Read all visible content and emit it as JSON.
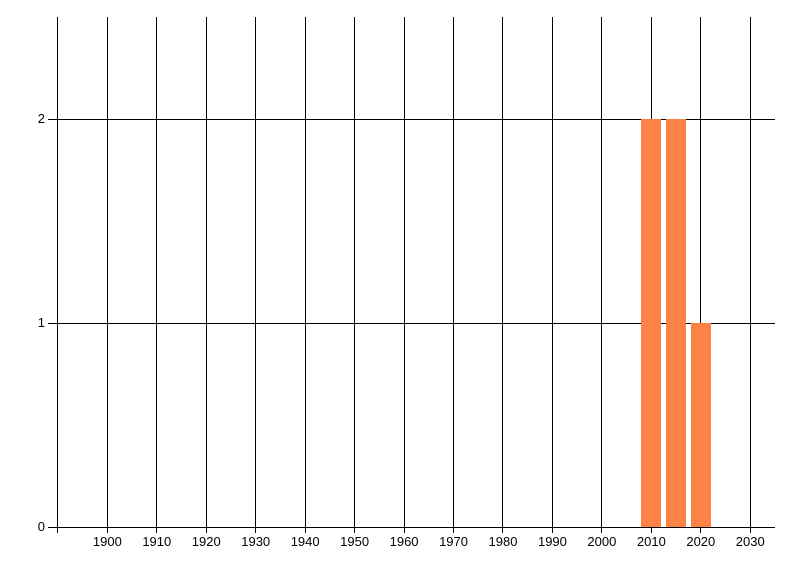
{
  "chart_data": {
    "type": "bar",
    "title": "",
    "xlabel": "",
    "ylabel": "",
    "x": [
      2010,
      2015,
      2020
    ],
    "values": [
      2,
      2,
      1
    ],
    "bar_width_years": 4,
    "xlim": [
      1888,
      2035
    ],
    "ylim": [
      0,
      2.5
    ],
    "x_gridline_years": [
      1890,
      1900,
      1910,
      1920,
      1930,
      1940,
      1950,
      1960,
      1970,
      1980,
      1990,
      2000,
      2010,
      2020,
      2030
    ],
    "x_tick_labels": [
      "1900",
      "1910",
      "1920",
      "1930",
      "1940",
      "1950",
      "1960",
      "1970",
      "1980",
      "1990",
      "2000",
      "2010",
      "2020",
      "2030"
    ],
    "x_tick_years": [
      1900,
      1910,
      1920,
      1930,
      1940,
      1950,
      1960,
      1970,
      1980,
      1990,
      2000,
      2010,
      2020,
      2030
    ],
    "y_tick_labels": [
      "0",
      "1",
      "2"
    ],
    "y_tick_values": [
      0,
      1,
      2
    ],
    "grid": "both",
    "legend": "none",
    "colors": {
      "bar": "#fd8245",
      "grid": "#000000",
      "text": "#000000",
      "background": "#ffffff"
    }
  }
}
